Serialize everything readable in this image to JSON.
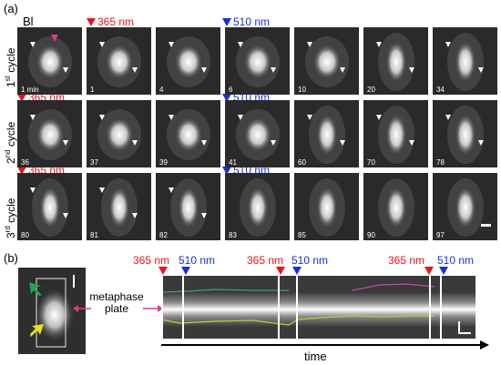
{
  "panel_a": {
    "label": "(a)",
    "bl_label": "Bl",
    "markers": {
      "uv": "365 nm",
      "green": "510 nm"
    },
    "cycles": [
      {
        "label_main": "1",
        "label_sup": "st",
        "label_rest": " cycle",
        "times": [
          "1 min",
          "1",
          "4",
          "6",
          "10",
          "20",
          "34"
        ]
      },
      {
        "label_main": "2",
        "label_sup": "nd",
        "label_rest": " cycle",
        "times": [
          "36",
          "37",
          "39",
          "41",
          "60",
          "70",
          "78"
        ]
      },
      {
        "label_main": "3",
        "label_sup": "rd",
        "label_rest": " cycle",
        "times": [
          "80",
          "81",
          "82",
          "83",
          "85",
          "90",
          "97"
        ]
      }
    ]
  },
  "panel_b": {
    "label": "(b)",
    "kymo_markers": [
      "365 nm",
      "510 nm",
      "365 nm",
      "510 nm",
      "365 nm",
      "510 nm"
    ],
    "metaphase_label_line1": "metaphase",
    "metaphase_label_line2": "plate",
    "time_label": "time"
  },
  "colors": {
    "uv_marker": "#e8141b",
    "green_marker": "#1b2fd6",
    "arrow_pink": "#e0388c",
    "arrow_green": "#21a35c",
    "arrow_yellow": "#e6e31a",
    "kymo_green_line": "#3aa86a",
    "kymo_magenta_line": "#c04aa0",
    "kymo_yellow_line": "#c9c73a"
  }
}
